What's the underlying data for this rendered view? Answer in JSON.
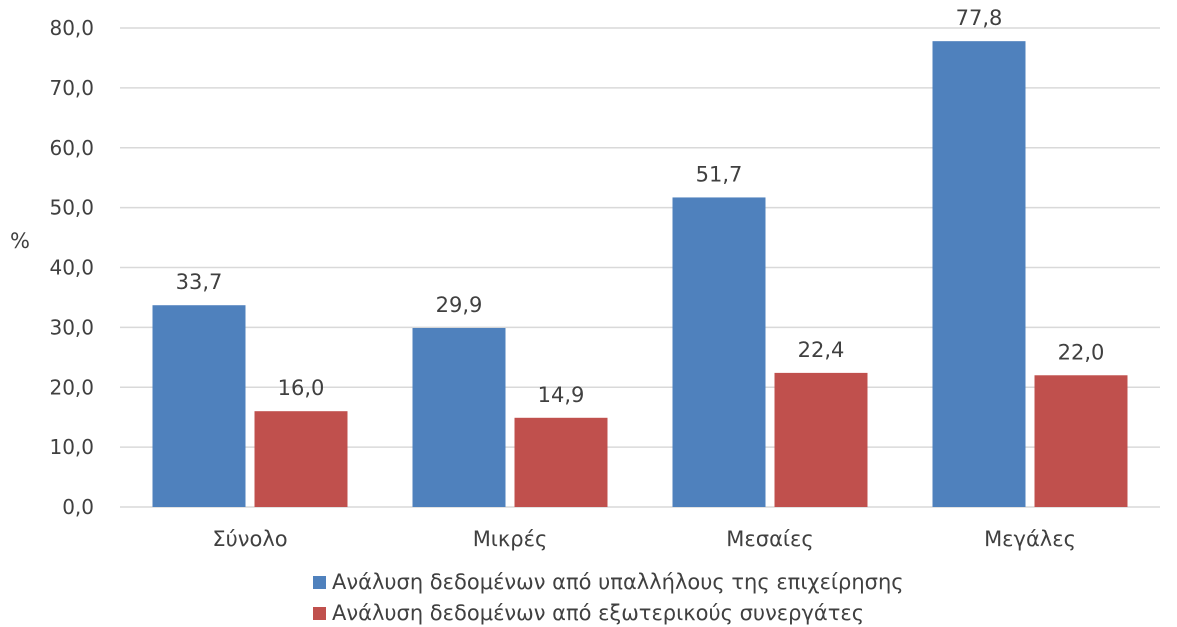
{
  "chart_data": {
    "type": "bar",
    "title": "",
    "xlabel": "",
    "ylabel": "%",
    "ylim": [
      0,
      80
    ],
    "yticks": [
      0,
      10,
      20,
      30,
      40,
      50,
      60,
      70,
      80
    ],
    "ytick_labels": [
      "0,0",
      "10,0",
      "20,0",
      "30,0",
      "40,0",
      "50,0",
      "60,0",
      "70,0",
      "80,0"
    ],
    "grid": true,
    "legend_position": "bottom",
    "categories": [
      "Σύνολο",
      "Μικρές",
      "Μεσαίες",
      "Μεγάλες"
    ],
    "series": [
      {
        "name": "Ανάλυση δεδομένων από υπαλλήλους της επιχείρησης",
        "color": "#4f81bd",
        "values": [
          33.7,
          29.9,
          51.7,
          77.8
        ],
        "labels": [
          "33,7",
          "29,9",
          "51,7",
          "77,8"
        ]
      },
      {
        "name": "Ανάλυση δεδομένων από εξωτερικούς συνεργάτες",
        "color": "#c0504d",
        "values": [
          16.0,
          14.9,
          22.4,
          22.0
        ],
        "labels": [
          "16,0",
          "14,9",
          "22,4",
          "22,0"
        ]
      }
    ]
  }
}
